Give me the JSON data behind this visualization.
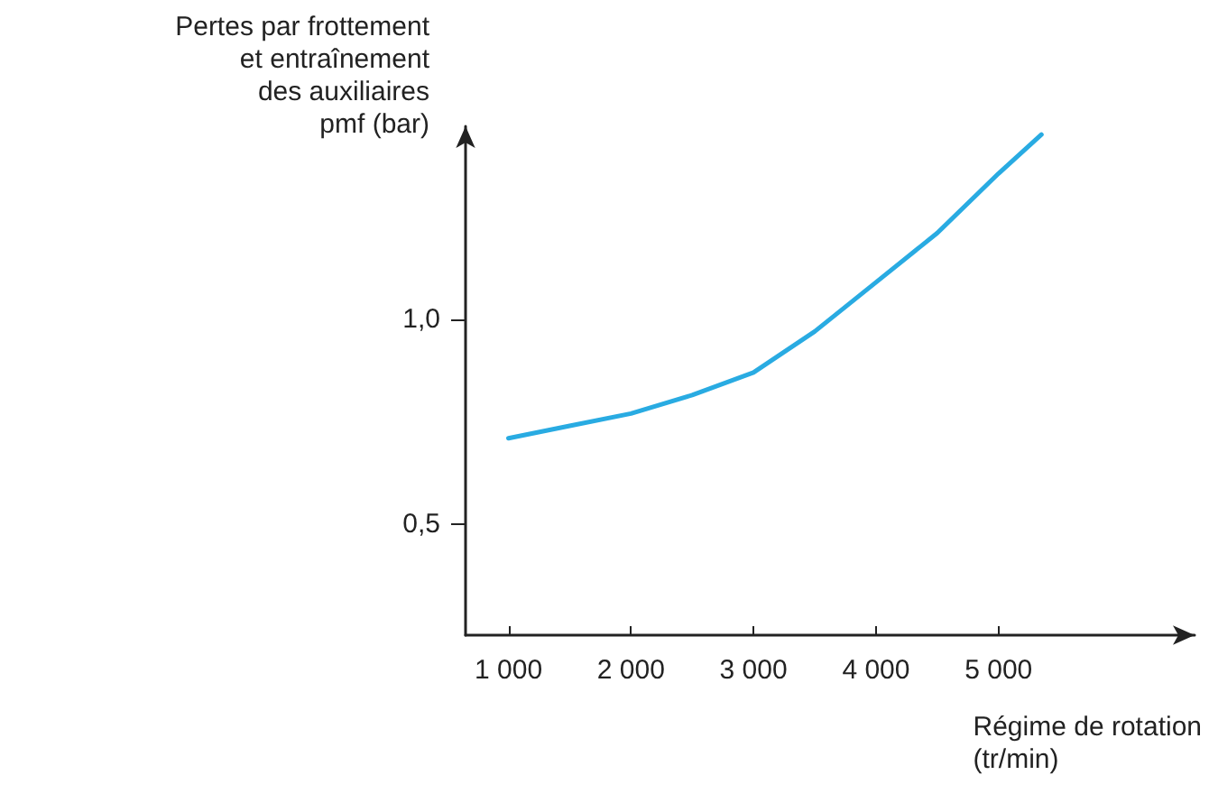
{
  "chart_data": {
    "type": "line",
    "xlabel": "Régime de rotation\n(tr/min)",
    "ylabel": "Pertes par frottement\net entraînement\ndes auxiliaires\npmf (bar)",
    "x": [
      1000,
      1500,
      2000,
      2500,
      3000,
      3500,
      4000,
      4500,
      5000,
      5350
    ],
    "series": [
      {
        "color": "#29abe2",
        "values": [
          0.71,
          0.74,
          0.77,
          0.815,
          0.87,
          0.97,
          1.09,
          1.21,
          1.355,
          1.45
        ]
      }
    ],
    "xlim": [
      650,
      6600
    ],
    "ylim": [
      0.23,
      1.47
    ],
    "xticks": [
      {
        "value": 1000,
        "label": "1 000"
      },
      {
        "value": 2000,
        "label": "2 000"
      },
      {
        "value": 3000,
        "label": "3 000"
      },
      {
        "value": 4000,
        "label": "4 000"
      },
      {
        "value": 5000,
        "label": "5 000"
      }
    ],
    "yticks": [
      {
        "value": 0.5,
        "label": "0,5"
      },
      {
        "value": 1.0,
        "label": "1,0"
      }
    ],
    "grid": false,
    "marker": "none",
    "line_style": "solid"
  }
}
